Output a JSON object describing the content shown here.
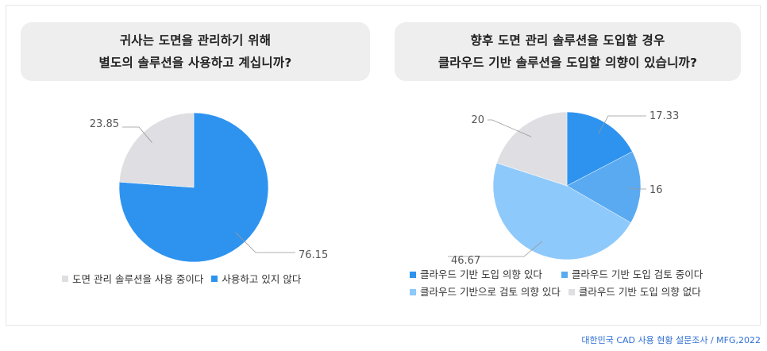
{
  "colors": {
    "blue": "#2e93ef",
    "mid_blue": "#5aaaf2",
    "light_blue": "#8ec9fb",
    "grey": "#dfdfe3"
  },
  "questions": {
    "q1_line1": "귀사는 도면을 관리하기 위해",
    "q1_line2": "별도의 솔루션을 사용하고 계십니까?",
    "q2_line1": "향후 도면 관리 솔루션을 도입할 경우",
    "q2_line2": "클라우드 기반 솔루션을 도입할 의향이 있습니까?"
  },
  "chart_data": [
    {
      "type": "pie",
      "title": "귀사는 도면을 관리하기 위해 별도의 솔루션을 사용하고 계십니까?",
      "slices": [
        {
          "label": "사용하고 있지 않다",
          "value": 76.15,
          "value_label": "76.15",
          "color": "#2e93ef"
        },
        {
          "label": "도면 관리 솔루션을 사용 중이다",
          "value": 23.85,
          "value_label": "23.85",
          "color": "#dfdfe3"
        }
      ],
      "legend": [
        "도면 관리 솔루션을 사용 중이다",
        "사용하고 있지 않다"
      ],
      "legend_placement": "bottom"
    },
    {
      "type": "pie",
      "title": "향후 도면 관리 솔루션을 도입할 경우 클라우드 기반 솔루션을 도입할 의향이 있습니까?",
      "slices": [
        {
          "label": "클라우드 기반 도입 의향 있다",
          "value": 17.33,
          "value_label": "17.33",
          "color": "#2e93ef"
        },
        {
          "label": "클라우드 기반 도입 검토 중이다",
          "value": 16,
          "value_label": "16",
          "color": "#5aaaf2"
        },
        {
          "label": "클라우드 기반으로 검토 의향 있다",
          "value": 46.67,
          "value_label": "46.67",
          "color": "#8ec9fb"
        },
        {
          "label": "클라우드 기반 도입 의향 없다",
          "value": 20,
          "value_label": "20",
          "color": "#dfdfe3"
        }
      ],
      "legend": [
        "클라우드 기반 도입 의향 있다",
        "클라우드 기반 도입 검토 중이다",
        "클라우드 기반으로 검토 의향 있다",
        "클라우드 기반 도입 의향 없다"
      ],
      "legend_placement": "bottom"
    }
  ],
  "source": "대한민국 CAD 사용 현황 설문조사 / MFG,2022"
}
